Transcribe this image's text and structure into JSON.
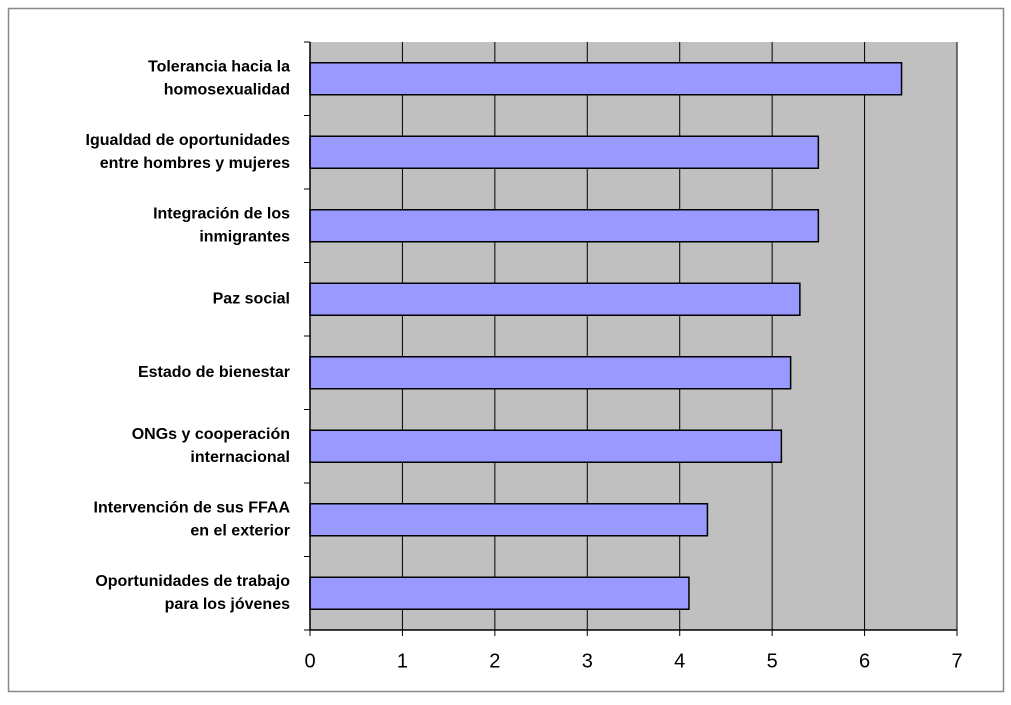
{
  "chart_data": {
    "type": "bar",
    "orientation": "horizontal",
    "categories": [
      [
        "Tolerancia hacia la",
        "homosexualidad"
      ],
      [
        "Igualdad de oportunidades",
        "entre hombres y mujeres"
      ],
      [
        "Integración de los",
        "inmigrantes"
      ],
      [
        "Paz social"
      ],
      [
        "Estado de bienestar"
      ],
      [
        "ONGs y cooperación",
        "internacional"
      ],
      [
        "Intervención de sus FFAA",
        "en el exterior"
      ],
      [
        "Oportunidades de trabajo",
        "para los jóvenes"
      ]
    ],
    "values": [
      6.4,
      5.5,
      5.5,
      5.3,
      5.2,
      5.1,
      4.3,
      4.1
    ],
    "color": "#9999ff",
    "xlim": [
      0,
      7
    ],
    "xticks": [
      0,
      1,
      2,
      3,
      4,
      5,
      6,
      7
    ],
    "grid": true
  }
}
